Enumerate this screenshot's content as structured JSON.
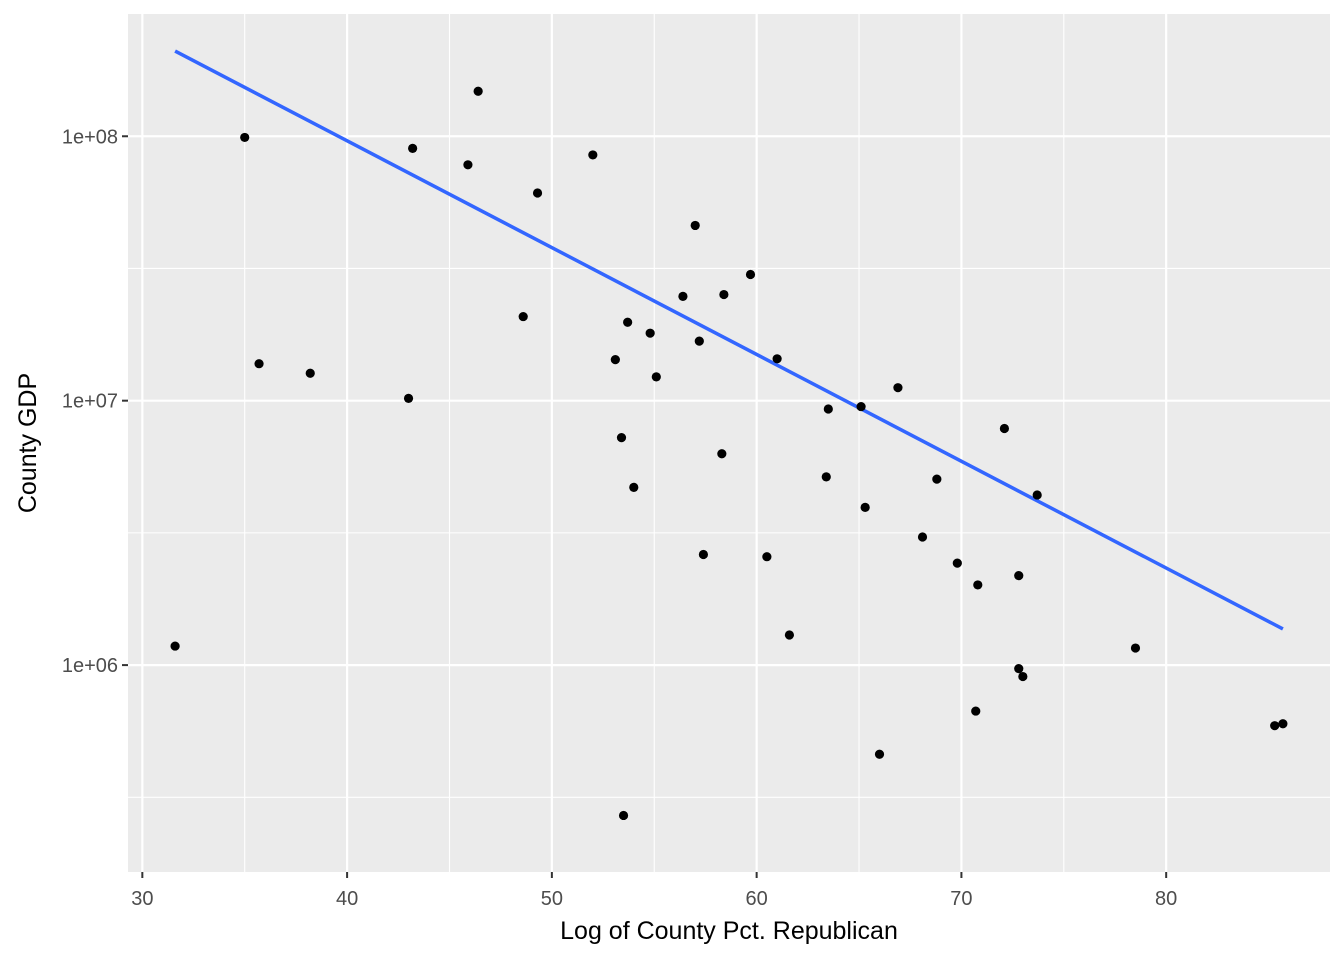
{
  "chart_data": {
    "type": "scatter",
    "xlabel": "Log of County Pct. Republican",
    "ylabel": "County GDP",
    "xlim": [
      29.3,
      88.0
    ],
    "ylim": [
      165000,
      290000000
    ],
    "y_scale": "log10",
    "x_ticks": [
      30,
      40,
      50,
      60,
      70,
      80
    ],
    "x_tick_labels": [
      "30",
      "40",
      "50",
      "60",
      "70",
      "80"
    ],
    "y_ticks": [
      1000000,
      10000000,
      100000000
    ],
    "y_tick_labels": [
      "1e+06",
      "1e+07",
      "1e+08"
    ],
    "grid": true,
    "colors": {
      "panel": "#EBEBEB",
      "grid": "#FFFFFF",
      "point": "#000000",
      "trend": "#3366FF"
    },
    "trend_line": {
      "x": [
        31.6,
        85.7
      ],
      "y": [
        210000000,
        1370000
      ]
    },
    "points": [
      {
        "x": 31.6,
        "y": 1180000
      },
      {
        "x": 35.0,
        "y": 99000000
      },
      {
        "x": 35.7,
        "y": 13800000
      },
      {
        "x": 38.2,
        "y": 12700000
      },
      {
        "x": 43.0,
        "y": 10200000
      },
      {
        "x": 43.2,
        "y": 90000000
      },
      {
        "x": 45.9,
        "y": 78000000
      },
      {
        "x": 46.4,
        "y": 148000000
      },
      {
        "x": 48.6,
        "y": 20800000
      },
      {
        "x": 49.3,
        "y": 61000000
      },
      {
        "x": 52.0,
        "y": 85000000
      },
      {
        "x": 53.1,
        "y": 14300000
      },
      {
        "x": 53.4,
        "y": 7250000
      },
      {
        "x": 53.5,
        "y": 270000
      },
      {
        "x": 53.7,
        "y": 19800000
      },
      {
        "x": 54.0,
        "y": 4700000
      },
      {
        "x": 54.8,
        "y": 18000000
      },
      {
        "x": 55.1,
        "y": 12300000
      },
      {
        "x": 56.4,
        "y": 24800000
      },
      {
        "x": 57.0,
        "y": 46000000
      },
      {
        "x": 57.2,
        "y": 16800000
      },
      {
        "x": 57.4,
        "y": 2620000
      },
      {
        "x": 58.3,
        "y": 6300000
      },
      {
        "x": 58.4,
        "y": 25200000
      },
      {
        "x": 59.7,
        "y": 30000000
      },
      {
        "x": 60.5,
        "y": 2570000
      },
      {
        "x": 61.0,
        "y": 14400000
      },
      {
        "x": 61.6,
        "y": 1300000
      },
      {
        "x": 63.4,
        "y": 5150000
      },
      {
        "x": 63.5,
        "y": 9300000
      },
      {
        "x": 65.1,
        "y": 9500000
      },
      {
        "x": 65.3,
        "y": 3950000
      },
      {
        "x": 66.0,
        "y": 460000
      },
      {
        "x": 66.9,
        "y": 11200000
      },
      {
        "x": 68.1,
        "y": 3050000
      },
      {
        "x": 68.8,
        "y": 5050000
      },
      {
        "x": 69.8,
        "y": 2430000
      },
      {
        "x": 70.7,
        "y": 670000
      },
      {
        "x": 70.8,
        "y": 2010000
      },
      {
        "x": 72.1,
        "y": 7850000
      },
      {
        "x": 72.8,
        "y": 970000
      },
      {
        "x": 72.8,
        "y": 2180000
      },
      {
        "x": 73.0,
        "y": 905000
      },
      {
        "x": 73.7,
        "y": 4400000
      },
      {
        "x": 78.5,
        "y": 1160000
      },
      {
        "x": 85.3,
        "y": 590000
      },
      {
        "x": 85.7,
        "y": 600000
      }
    ]
  }
}
